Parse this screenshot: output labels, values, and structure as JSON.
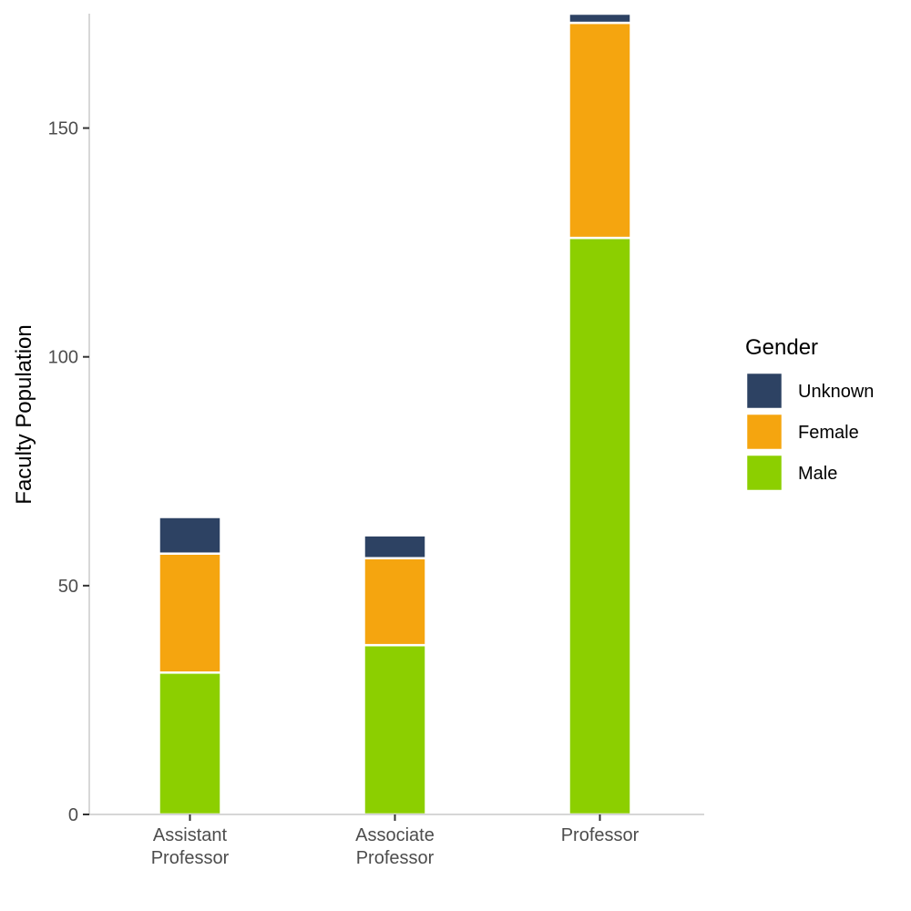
{
  "chart_data": {
    "type": "bar",
    "stacked": true,
    "categories": [
      "Assistant\nProfessor",
      "Associate\nProfessor",
      "Professor"
    ],
    "series": [
      {
        "name": "Male",
        "color": "#8ccf00",
        "values": [
          31,
          37,
          126
        ]
      },
      {
        "name": "Female",
        "color": "#f5a50f",
        "values": [
          26,
          19,
          47
        ]
      },
      {
        "name": "Unknown",
        "color": "#2d4263",
        "values": [
          8,
          5,
          2
        ]
      }
    ],
    "xlabel": "",
    "ylabel": "Faculty Population",
    "ylim": [
      0,
      175
    ],
    "yticks": [
      0,
      50,
      100,
      150
    ],
    "grid": false,
    "legend": {
      "title": "Gender",
      "placement": "right",
      "order": [
        "Unknown",
        "Female",
        "Male"
      ]
    }
  }
}
